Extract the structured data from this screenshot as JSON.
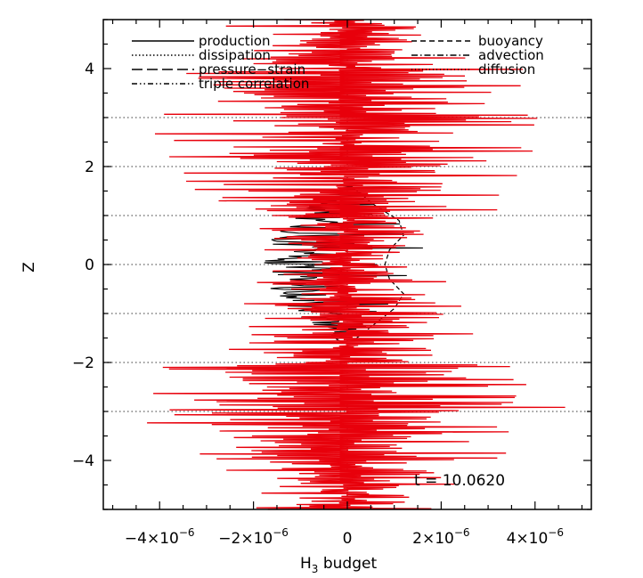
{
  "chart_data": {
    "type": "line",
    "title": "",
    "xlabel_main": "H",
    "xlabel_sub": "3",
    "xlabel_rest": " budget",
    "ylabel": "Z",
    "xlim": [
      -5.2e-06,
      5.2e-06
    ],
    "ylim": [
      -5,
      5
    ],
    "x_ticks": [
      {
        "value": -4e-06,
        "mantissa": "−4×10",
        "exp": "−6"
      },
      {
        "value": -2e-06,
        "mantissa": "−2×10",
        "exp": "−6"
      },
      {
        "value": 0,
        "mantissa": "0",
        "exp": ""
      },
      {
        "value": 2e-06,
        "mantissa": "2×10",
        "exp": "−6"
      },
      {
        "value": 4e-06,
        "mantissa": "4×10",
        "exp": "−6"
      }
    ],
    "y_ticks": [
      {
        "value": 4,
        "label": "4"
      },
      {
        "value": 2,
        "label": "2"
      },
      {
        "value": 0,
        "label": "0"
      },
      {
        "value": -2,
        "label": "−2"
      },
      {
        "value": -4,
        "label": "−4"
      }
    ],
    "gridlines_y": [
      3,
      2,
      1,
      0,
      -1,
      -2,
      -3
    ],
    "annotation": "t  =  10.0620",
    "legend": {
      "left": [
        {
          "label": "production",
          "style": "solid"
        },
        {
          "label": "dissipation",
          "style": "dotted"
        },
        {
          "label": "pressure−strain",
          "style": "dashed-long"
        },
        {
          "label": "triple correlation",
          "style": "dash-dot-dot"
        }
      ],
      "right": [
        {
          "label": "buoyancy",
          "style": "dashed"
        },
        {
          "label": "advection",
          "style": "dash-dot"
        },
        {
          "label": "diffusion",
          "style": "dotted-fine"
        }
      ]
    },
    "series": [
      {
        "name": "pressure−strain",
        "color": "#000000",
        "style": "dashed-long",
        "z": [
          -1.7,
          -1.5,
          -1.3,
          -1.1,
          -0.9,
          -0.7,
          -0.5,
          -0.3,
          -0.1,
          0.1,
          0.3,
          0.5,
          0.7,
          0.9,
          1.1,
          1.3,
          1.5
        ],
        "x": [
          -1e-07,
          -2e-07,
          -4e-07,
          -8e-07,
          -1.4e-06,
          -1.6e-06,
          -1.2e-06,
          -9e-07,
          -1e-06,
          -8e-07,
          -1e-06,
          -1.2e-06,
          -1.8e-06,
          -1.5e-06,
          -8e-07,
          -3e-07,
          -1e-07
        ]
      },
      {
        "name": "buoyancy",
        "color": "#000000",
        "style": "dashed",
        "z": [
          -1.5,
          -1.2,
          -0.9,
          -0.6,
          -0.3,
          0.0,
          0.3,
          0.6,
          0.9,
          1.2,
          1.5
        ],
        "x": [
          2e-07,
          6e-07,
          1e-06,
          1.2e-06,
          9e-07,
          8e-07,
          9e-07,
          1.2e-06,
          1.1e-06,
          6e-07,
          2e-07
        ]
      },
      {
        "name": "diffusion",
        "color": "#e8000b",
        "style": "solid",
        "z_range": [
          -5,
          5
        ],
        "x_amplitude_max": 4.8e-06
      }
    ]
  }
}
